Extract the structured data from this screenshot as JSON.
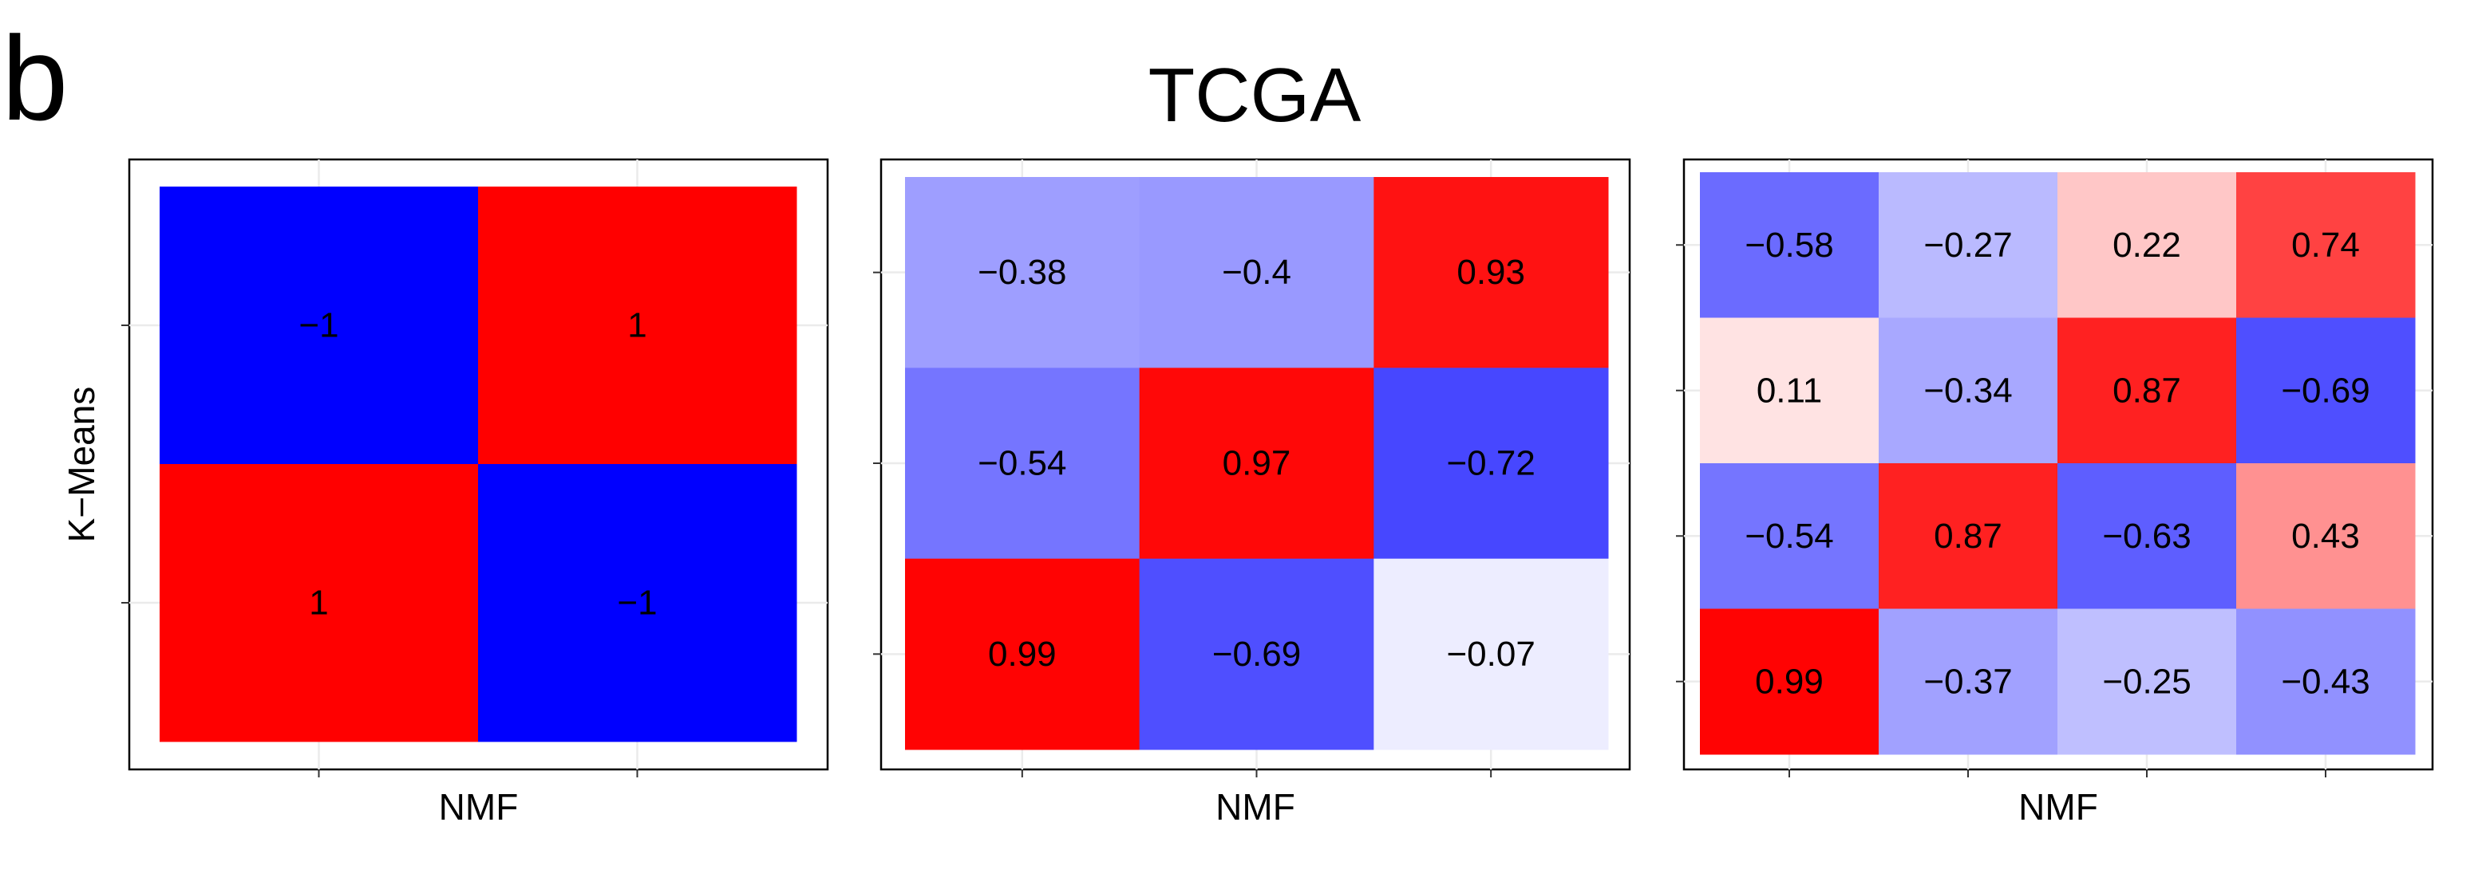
{
  "figure": {
    "panel_tag": "b",
    "title": "TCGA"
  },
  "chart_data": [
    {
      "type": "heatmap",
      "xlabel": "NMF",
      "ylabel": "K−Means",
      "rows": 2,
      "cols": 2,
      "values": [
        [
          -1,
          1
        ],
        [
          1,
          -1
        ]
      ],
      "labels": [
        [
          "−1",
          "1"
        ],
        [
          "1",
          "−1"
        ]
      ],
      "color_scale": {
        "low": "#0000ff",
        "mid": "#ffffff",
        "high": "#ff0000",
        "limits": [
          -1,
          1
        ]
      },
      "grid": true
    },
    {
      "type": "heatmap",
      "xlabel": "NMF",
      "ylabel": "",
      "rows": 3,
      "cols": 3,
      "values": [
        [
          -0.38,
          -0.4,
          0.93
        ],
        [
          -0.54,
          0.97,
          -0.72
        ],
        [
          0.99,
          -0.69,
          -0.07
        ]
      ],
      "labels": [
        [
          "−0.38",
          "−0.4",
          "0.93"
        ],
        [
          "−0.54",
          "0.97",
          "−0.72"
        ],
        [
          "0.99",
          "−0.69",
          "−0.07"
        ]
      ],
      "color_scale": {
        "low": "#0000ff",
        "mid": "#ffffff",
        "high": "#ff0000",
        "limits": [
          -1,
          1
        ]
      },
      "grid": true
    },
    {
      "type": "heatmap",
      "xlabel": "NMF",
      "ylabel": "",
      "rows": 4,
      "cols": 4,
      "values": [
        [
          -0.58,
          -0.27,
          0.22,
          0.74
        ],
        [
          0.11,
          -0.34,
          0.87,
          -0.69
        ],
        [
          -0.54,
          0.87,
          -0.63,
          0.43
        ],
        [
          0.99,
          -0.37,
          -0.25,
          -0.43
        ]
      ],
      "labels": [
        [
          "−0.58",
          "−0.27",
          "0.22",
          "0.74"
        ],
        [
          "0.11",
          "−0.34",
          "0.87",
          "−0.69"
        ],
        [
          "−0.54",
          "0.87",
          "−0.63",
          "0.43"
        ],
        [
          "0.99",
          "−0.37",
          "−0.25",
          "−0.43"
        ]
      ],
      "color_scale": {
        "low": "#0000ff",
        "mid": "#ffffff",
        "high": "#ff0000",
        "limits": [
          -1,
          1
        ]
      },
      "grid": true
    }
  ]
}
